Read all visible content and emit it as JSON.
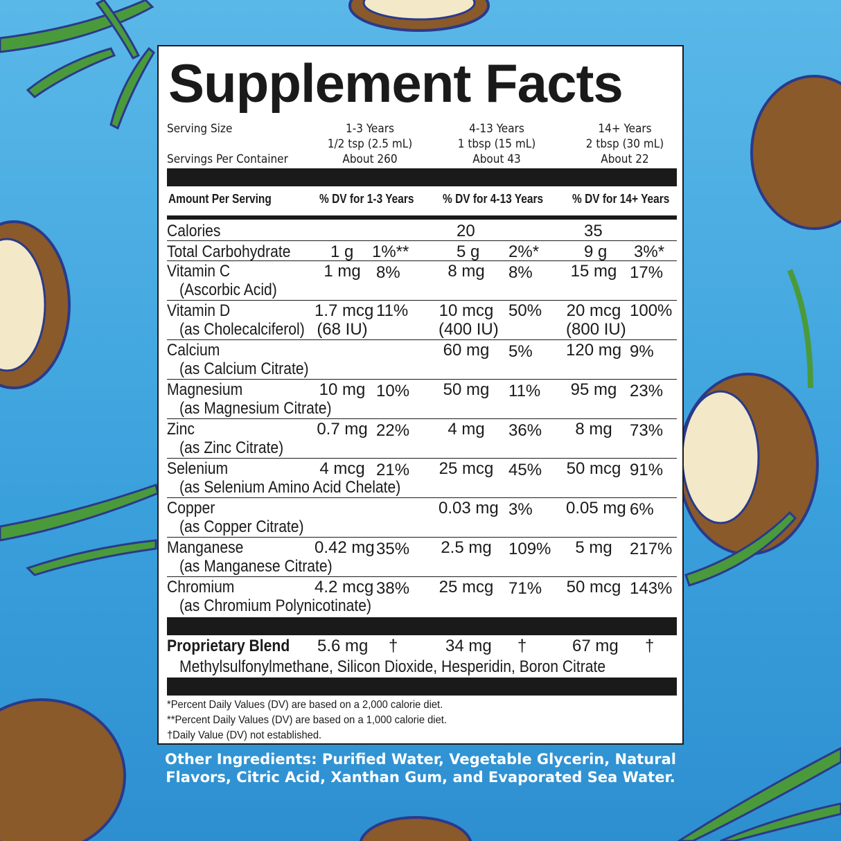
{
  "title": "Supplement Facts",
  "serving": {
    "size_label": "Serving Size",
    "per_container_label": "Servings Per Container",
    "groups": [
      {
        "age": "1-3 Years",
        "size": "1/2 tsp (2.5 mL)",
        "servings": "About 260"
      },
      {
        "age": "4-13 Years",
        "size": "1 tbsp (15 mL)",
        "servings": "About 43"
      },
      {
        "age": "14+ Years",
        "size": "2 tbsp (30 mL)",
        "servings": "About 22"
      }
    ]
  },
  "header": {
    "amount": "Amount Per Serving",
    "dv1": "% DV for 1-3 Years",
    "dv2": "% DV for 4-13 Years",
    "dv3": "% DV for 14+ Years"
  },
  "calories": {
    "label": "Calories",
    "v2": "20",
    "v3": "35"
  },
  "carb": {
    "label": "Total Carbohydrate",
    "a1": "1 g",
    "d1": "1%**",
    "a2": "5 g",
    "d2": "2%*",
    "a3": "9 g",
    "d3": "3%*"
  },
  "nutrients": [
    {
      "name": "Vitamin C",
      "sub": "(Ascorbic Acid)",
      "a1": "1 mg",
      "d1": "8%",
      "a2": "8 mg",
      "d2": "8%",
      "a3": "15 mg",
      "d3": "17%"
    },
    {
      "name": "Vitamin D",
      "sub": "(as Cholecalciferol)",
      "a1": "1.7 mcg",
      "a1b": "(68 IU)",
      "d1": "11%",
      "a2": "10 mcg",
      "a2b": "(400 IU)",
      "d2": "50%",
      "a3": "20 mcg",
      "a3b": "(800 IU)",
      "d3": "100%"
    },
    {
      "name": "Calcium",
      "sub": "(as Calcium Citrate)",
      "a1": "",
      "d1": "",
      "a2": "60 mg",
      "d2": "5%",
      "a3": "120 mg",
      "d3": "9%"
    },
    {
      "name": "Magnesium",
      "sub": "(as Magnesium Citrate)",
      "a1": "10 mg",
      "d1": "10%",
      "a2": "50 mg",
      "d2": "11%",
      "a3": "95 mg",
      "d3": "23%"
    },
    {
      "name": "Zinc",
      "sub": "(as Zinc Citrate)",
      "a1": "0.7 mg",
      "d1": "22%",
      "a2": "4 mg",
      "d2": "36%",
      "a3": "8 mg",
      "d3": "73%"
    },
    {
      "name": "Selenium",
      "sub": "(as Selenium Amino Acid Chelate)",
      "a1": "4 mcg",
      "d1": "21%",
      "a2": "25 mcg",
      "d2": "45%",
      "a3": "50 mcg",
      "d3": "91%"
    },
    {
      "name": "Copper",
      "sub": "(as Copper Citrate)",
      "a1": "",
      "d1": "",
      "a2": "0.03 mg",
      "d2": "3%",
      "a3": "0.05 mg",
      "d3": "6%"
    },
    {
      "name": "Manganese",
      "sub": "(as Manganese Citrate)",
      "a1": "0.42 mg",
      "d1": "35%",
      "a2": "2.5 mg",
      "d2": "109%",
      "a3": "5 mg",
      "d3": "217%"
    },
    {
      "name": "Chromium",
      "sub": "(as Chromium Polynicotinate)",
      "a1": "4.2 mcg",
      "d1": "38%",
      "a2": "25 mcg",
      "d2": "71%",
      "a3": "50 mcg",
      "d3": "143%"
    }
  ],
  "blend": {
    "label": "Proprietary Blend",
    "a1": "5.6 mg",
    "d1": "†",
    "a2": "34 mg",
    "d2": "†",
    "a3": "67 mg",
    "d3": "†",
    "ingredients": "Methylsulfonylmethane, Silicon Dioxide, Hesperidin, Boron Citrate"
  },
  "footnotes": [
    "*Percent Daily Values (DV) are based on a 2,000 calorie diet.",
    "**Percent Daily Values (DV) are based on a 1,000 calorie diet.",
    "†Daily Value (DV) not established."
  ],
  "other_ingredients": {
    "line1": "Other Ingredients: Purified Water, Vegetable Glycerin, Natural",
    "line2": "Flavors, Citric Acid, Xanthan Gum, and Evaporated Sea Water."
  },
  "colors": {
    "background": "#4aaee2",
    "coconut_shell": "#8a5a2b",
    "coconut_flesh": "#f3e8c8",
    "leaf": "#4a9a3c",
    "outline": "#2a3a8a"
  }
}
